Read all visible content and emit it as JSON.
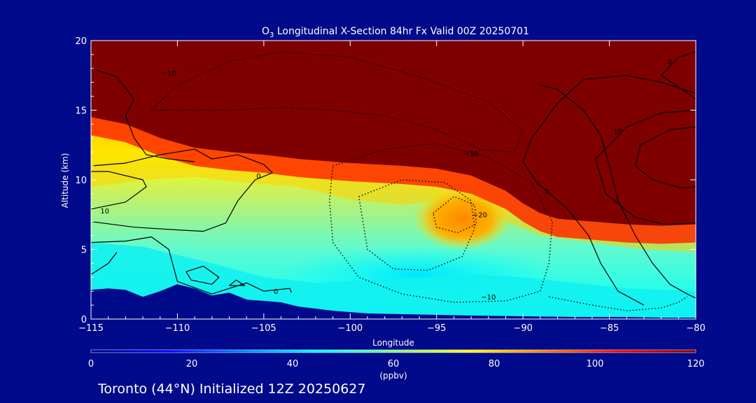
{
  "chart_data": {
    "type": "heatmap",
    "title_prefix": "O",
    "title_subscript": "3",
    "title_rest": " Longitudinal X-Section 84hr  Fx Valid 00Z 20250701",
    "xlabel": "Longitude",
    "ylabel": "Altitude (km)",
    "xlim": [
      -115,
      -80
    ],
    "ylim": [
      0,
      20
    ],
    "xticks": [
      -115,
      -110,
      -105,
      -100,
      -95,
      -90,
      -85,
      -80
    ],
    "xtick_labels": [
      "−115",
      "−110",
      "−105",
      "−100",
      "−95",
      "−90",
      "−85",
      "−80"
    ],
    "yticks": [
      0,
      5,
      10,
      15,
      20
    ],
    "ytick_labels": [
      "0",
      "5",
      "10",
      "15",
      "20"
    ],
    "colorbar": {
      "min": 0,
      "max": 120,
      "ticks": [
        0,
        20,
        40,
        60,
        80,
        100,
        120
      ],
      "tick_labels": [
        "0",
        "20",
        "40",
        "60",
        "80",
        "100",
        "120"
      ],
      "unit": "(ppbv)",
      "colors": [
        "#00007f",
        "#0000ff",
        "#007fff",
        "#00ffff",
        "#7fff7f",
        "#ffff00",
        "#ff7f00",
        "#ff0000",
        "#7f0000"
      ]
    },
    "tropopause_km": [
      [
        -115,
        14.5
      ],
      [
        -113,
        14.0
      ],
      [
        -111,
        13.0
      ],
      [
        -109,
        12.3
      ],
      [
        -107,
        12.0
      ],
      [
        -105,
        11.8
      ],
      [
        -103,
        11.5
      ],
      [
        -100,
        11.2
      ],
      [
        -97,
        11.0
      ],
      [
        -95,
        10.8
      ],
      [
        -93,
        10.3
      ],
      [
        -91,
        9.2
      ],
      [
        -90,
        8.3
      ],
      [
        -89,
        7.6
      ],
      [
        -88,
        7.2
      ],
      [
        -86,
        7.0
      ],
      [
        -84,
        6.8
      ],
      [
        -82,
        6.7
      ],
      [
        -80,
        6.8
      ]
    ],
    "mid_band_top_km": [
      [
        -115,
        9.5
      ],
      [
        -112,
        10.0
      ],
      [
        -109,
        10.2
      ],
      [
        -106,
        9.8
      ],
      [
        -103,
        9.5
      ],
      [
        -100,
        8.6
      ],
      [
        -97,
        8.2
      ],
      [
        -95,
        8.5
      ],
      [
        -93,
        8.0
      ],
      [
        -91,
        7.0
      ],
      [
        -89,
        6.0
      ],
      [
        -86,
        5.5
      ],
      [
        -83,
        5.0
      ],
      [
        -80,
        4.8
      ]
    ],
    "boundary_layer_top_km": [
      [
        -115,
        5.5
      ],
      [
        -112,
        5.2
      ],
      [
        -110,
        4.6
      ],
      [
        -108,
        4.0
      ],
      [
        -105,
        3.0
      ],
      [
        -102,
        2.6
      ],
      [
        -99,
        2.8
      ],
      [
        -96,
        3.0
      ],
      [
        -93,
        3.2
      ],
      [
        -90,
        3.0
      ],
      [
        -87,
        2.6
      ],
      [
        -84,
        2.2
      ],
      [
        -80,
        2.0
      ]
    ],
    "terrain_km": [
      [
        -115,
        2.1
      ],
      [
        -114,
        2.2
      ],
      [
        -113,
        2.1
      ],
      [
        -112,
        1.6
      ],
      [
        -111,
        2.0
      ],
      [
        -110,
        2.5
      ],
      [
        -109,
        2.2
      ],
      [
        -108,
        1.7
      ],
      [
        -107,
        1.9
      ],
      [
        -106,
        1.4
      ],
      [
        -105,
        1.3
      ],
      [
        -104,
        1.2
      ],
      [
        -103,
        0.9
      ],
      [
        -101,
        0.6
      ],
      [
        -99,
        0.4
      ],
      [
        -97,
        0.35
      ],
      [
        -95,
        0.3
      ],
      [
        -93,
        0.25
      ],
      [
        -90,
        0.2
      ],
      [
        -87,
        0.15
      ],
      [
        -84,
        0.15
      ],
      [
        -82,
        0.1
      ],
      [
        -80,
        0.1
      ]
    ],
    "contours": [
      {
        "style": "dotted",
        "label": "−10",
        "label_at": [
          -110.5,
          17.5
        ],
        "points": [
          [
            -111.5,
            15.0
          ],
          [
            -110,
            16.8
          ],
          [
            -107,
            18.5
          ],
          [
            -104,
            19.2
          ],
          [
            -100,
            18.8
          ],
          [
            -96,
            17.4
          ],
          [
            -92,
            15.6
          ],
          [
            -90,
            13.5
          ],
          [
            -90.5,
            12.0
          ],
          [
            -92.5,
            12.2
          ],
          [
            -95,
            13.6
          ],
          [
            -98,
            14.6
          ],
          [
            -101,
            15.0
          ],
          [
            -104,
            15.2
          ],
          [
            -107,
            15.0
          ],
          [
            -111.5,
            15.0
          ]
        ]
      },
      {
        "style": "dotted",
        "label": "−10",
        "label_at": [
          -93.0,
          11.7
        ],
        "points": [
          [
            -101,
            11.0
          ],
          [
            -98,
            12.2
          ],
          [
            -95,
            12.6
          ],
          [
            -92,
            11.6
          ],
          [
            -89.5,
            9.8
          ],
          [
            -88.3,
            7.0
          ],
          [
            -88.5,
            4.0
          ],
          [
            -89,
            2.0
          ],
          [
            -91,
            1.3
          ],
          [
            -94,
            1.2
          ],
          [
            -97,
            1.8
          ],
          [
            -99.5,
            3.0
          ],
          [
            -101,
            5.5
          ],
          [
            -101.2,
            8.5
          ],
          [
            -101,
            11.0
          ]
        ]
      },
      {
        "style": "dotted",
        "label": "−10",
        "label_at": [
          -92.0,
          1.4
        ],
        "points": [
          [
            -99.5,
            8.8
          ],
          [
            -97,
            10.0
          ],
          [
            -94.5,
            9.8
          ],
          [
            -93,
            8.5
          ],
          [
            -92.8,
            6.5
          ],
          [
            -93.5,
            4.5
          ],
          [
            -95.5,
            3.5
          ],
          [
            -97.5,
            3.6
          ],
          [
            -99,
            5.0
          ],
          [
            -99.5,
            8.8
          ]
        ]
      },
      {
        "style": "dotted",
        "label": "−20",
        "label_at": [
          -92.5,
          7.3
        ],
        "points": [
          [
            -95.2,
            7.6
          ],
          [
            -94,
            8.8
          ],
          [
            -92.8,
            8.2
          ],
          [
            -92.7,
            6.8
          ],
          [
            -93.8,
            6.2
          ],
          [
            -95,
            6.6
          ],
          [
            -95.2,
            7.6
          ]
        ]
      },
      {
        "style": "dotted",
        "label": "",
        "label_at": [
          -87.5,
          0.7
        ],
        "points": [
          [
            -88.5,
            1.6
          ],
          [
            -86,
            1.0
          ],
          [
            -84,
            0.6
          ],
          [
            -82,
            0.8
          ],
          [
            -81,
            1.2
          ],
          [
            -80.5,
            1.6
          ]
        ]
      },
      {
        "style": "solid",
        "label": "0",
        "label_at": [
          -104.3,
          1.8
        ],
        "points": [
          [
            -115,
            5.5
          ],
          [
            -113,
            5.6
          ],
          [
            -111.5,
            5.9
          ],
          [
            -110.5,
            5.0
          ],
          [
            -110,
            2.7
          ],
          [
            -108,
            1.8
          ],
          [
            -106,
            2.6
          ],
          [
            -105,
            2.0
          ],
          [
            -103.5,
            2.2
          ],
          [
            -103.4,
            1.9
          ]
        ]
      },
      {
        "style": "solid",
        "label": "0",
        "label_at": [
          -115.2,
          3.7
        ],
        "points": [
          [
            -115,
            3.2
          ],
          [
            -114,
            4.0
          ],
          [
            -113.5,
            4.8
          ]
        ]
      },
      {
        "style": "solid",
        "label": "",
        "label_at": [
          -109,
          3.0
        ],
        "points": [
          [
            -109.5,
            3.4
          ],
          [
            -108.5,
            3.8
          ],
          [
            -107.6,
            3.0
          ],
          [
            -108.0,
            2.5
          ],
          [
            -109.2,
            2.8
          ],
          [
            -109.5,
            3.4
          ]
        ]
      },
      {
        "style": "solid",
        "label": "",
        "label_at": [
          -106.5,
          2.5
        ],
        "points": [
          [
            -107,
            2.4
          ],
          [
            -106.6,
            2.8
          ],
          [
            -106.1,
            2.4
          ],
          [
            -107,
            2.4
          ]
        ]
      },
      {
        "style": "solid",
        "label": "0",
        "label_at": [
          -105.3,
          10.1
        ],
        "points": [
          [
            -115,
            11.0
          ],
          [
            -113,
            11.2
          ],
          [
            -111,
            11.8
          ],
          [
            -109,
            12.2
          ],
          [
            -108,
            11.5
          ],
          [
            -106.5,
            11.8
          ],
          [
            -105,
            11.1
          ],
          [
            -104.5,
            10.5
          ],
          [
            -105.5,
            10.0
          ],
          [
            -106.5,
            8.5
          ],
          [
            -107.2,
            6.9
          ],
          [
            -108.5,
            6.3
          ],
          [
            -110,
            6.4
          ],
          [
            -112.5,
            6.6
          ],
          [
            -115,
            7.0
          ]
        ]
      },
      {
        "style": "solid",
        "label": "10",
        "label_at": [
          -114.2,
          7.6
        ],
        "points": [
          [
            -115,
            7.9
          ],
          [
            -113,
            8.4
          ],
          [
            -111.8,
            9.5
          ],
          [
            -112,
            10.0
          ],
          [
            -114,
            10.6
          ],
          [
            -115,
            10.6
          ]
        ]
      },
      {
        "style": "solid",
        "label": "",
        "label_at": [
          -113.5,
          12.5
        ],
        "points": [
          [
            -115,
            18.0
          ],
          [
            -113.5,
            17.4
          ],
          [
            -112.5,
            15.8
          ],
          [
            -113,
            14.6
          ],
          [
            -112.5,
            13.0
          ],
          [
            -111.8,
            11.8
          ],
          [
            -110.5,
            11.5
          ],
          [
            -109,
            11.3
          ]
        ]
      },
      {
        "style": "solid",
        "label": "0",
        "label_at": [
          -88.6,
          9.0
        ],
        "points": [
          [
            -80,
            16.2
          ],
          [
            -82,
            17.0
          ],
          [
            -84,
            17.5
          ],
          [
            -86.5,
            17.2
          ],
          [
            -88,
            15.5
          ],
          [
            -89.5,
            13.0
          ],
          [
            -90,
            11.3
          ],
          [
            -89.2,
            9.8
          ],
          [
            -87.5,
            8.0
          ],
          [
            -86.2,
            6.0
          ],
          [
            -85.5,
            4.0
          ],
          [
            -84.5,
            2.0
          ],
          [
            -83,
            1.0
          ]
        ]
      },
      {
        "style": "solid",
        "label": "",
        "label_at": [
          -84,
          16
        ],
        "points": [
          [
            -89,
            16.8
          ],
          [
            -88,
            16.5
          ],
          [
            -86.5,
            15.0
          ],
          [
            -85.5,
            13.2
          ],
          [
            -85,
            11.0
          ],
          [
            -84.5,
            8.5
          ],
          [
            -83.5,
            6.0
          ],
          [
            -82.5,
            4.0
          ],
          [
            -81.5,
            2.5
          ],
          [
            -80.5,
            1.8
          ],
          [
            -80,
            1.5
          ]
        ]
      },
      {
        "style": "solid",
        "label": "0",
        "label_at": [
          -81.5,
          18.3
        ],
        "points": [
          [
            -80,
            15.8
          ],
          [
            -80.8,
            16.5
          ],
          [
            -82,
            17.5
          ],
          [
            -81,
            18.8
          ],
          [
            -80,
            19.2
          ]
        ]
      },
      {
        "style": "solid",
        "label": "10",
        "label_at": [
          -84.5,
          13.3
        ],
        "points": [
          [
            -80,
            15.0
          ],
          [
            -82,
            14.8
          ],
          [
            -84,
            13.8
          ],
          [
            -85.8,
            11.5
          ],
          [
            -85.2,
            9.0
          ],
          [
            -83.5,
            7.3
          ],
          [
            -81.8,
            6.8
          ],
          [
            -80,
            6.9
          ]
        ]
      },
      {
        "style": "solid",
        "label": "",
        "label_at": [
          -82.5,
          12.0
        ],
        "points": [
          [
            -80,
            13.8
          ],
          [
            -81.5,
            13.6
          ],
          [
            -83.2,
            12.5
          ],
          [
            -83.5,
            11.0
          ],
          [
            -82.5,
            10.0
          ],
          [
            -80.8,
            9.4
          ],
          [
            -80,
            9.5
          ]
        ]
      }
    ]
  },
  "footer": {
    "caption": "Toronto (44°N) Initialized 12Z 20250627"
  }
}
